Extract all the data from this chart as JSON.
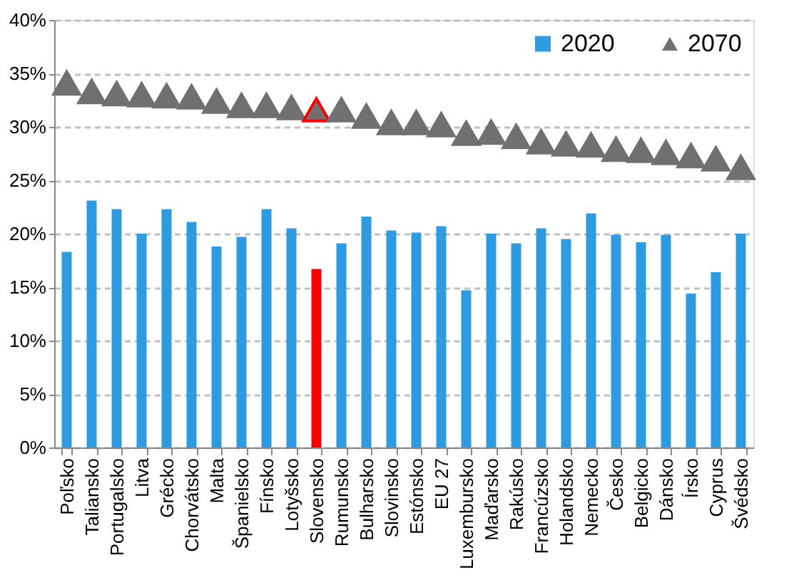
{
  "chart_data": {
    "type": "bar",
    "categories": [
      "Poľsko",
      "Taliansko",
      "Portugalsko",
      "Litva",
      "Grécko",
      "Chorvátsko",
      "Malta",
      "Španielsko",
      "Fínsko",
      "Lotyšsko",
      "Slovensko",
      "Rumunsko",
      "Bulharsko",
      "Slovinsko",
      "Estónsko",
      "EU 27",
      "Luxembursko",
      "Maďarsko",
      "Rakúsko",
      "Francúzsko",
      "Holandsko",
      "Nemecko",
      "Česko",
      "Belgicko",
      "Dánsko",
      "Írsko",
      "Cyprus",
      "Švédsko"
    ],
    "series": [
      {
        "name": "2020",
        "color": "#2e9ae0",
        "colors": [
          "#2e9ae0",
          "#2e9ae0",
          "#2e9ae0",
          "#2e9ae0",
          "#2e9ae0",
          "#2e9ae0",
          "#2e9ae0",
          "#2e9ae0",
          "#2e9ae0",
          "#2e9ae0",
          "#ff0000",
          "#2e9ae0",
          "#2e9ae0",
          "#2e9ae0",
          "#2e9ae0",
          "#2e9ae0",
          "#2e9ae0",
          "#2e9ae0",
          "#2e9ae0",
          "#2e9ae0",
          "#2e9ae0",
          "#2e9ae0",
          "#2e9ae0",
          "#2e9ae0",
          "#2e9ae0",
          "#2e9ae0",
          "#2e9ae0",
          "#2e9ae0"
        ],
        "values": [
          18.3,
          23.1,
          22.3,
          20.0,
          22.3,
          21.1,
          18.8,
          19.7,
          22.3,
          20.5,
          16.7,
          19.1,
          21.6,
          20.3,
          20.1,
          20.7,
          14.7,
          20.0,
          19.1,
          20.5,
          19.5,
          21.9,
          19.9,
          19.2,
          19.9,
          14.4,
          16.4,
          20.0
        ]
      },
      {
        "name": "2070",
        "type": "scatter",
        "marker": "triangle",
        "color": "#707070",
        "colors": [
          "#707070",
          "#707070",
          "#707070",
          "#707070",
          "#707070",
          "#707070",
          "#707070",
          "#707070",
          "#707070",
          "#707070",
          "#ff0000",
          "#707070",
          "#707070",
          "#707070",
          "#707070",
          "#707070",
          "#707070",
          "#707070",
          "#707070",
          "#707070",
          "#707070",
          "#707070",
          "#707070",
          "#707070",
          "#707070",
          "#707070",
          "#707070",
          "#707070"
        ],
        "values": [
          34.1,
          33.3,
          33.1,
          33.0,
          32.9,
          32.8,
          32.4,
          32.0,
          32.0,
          31.8,
          31.6,
          31.6,
          31.0,
          30.4,
          30.4,
          30.2,
          29.4,
          29.5,
          29.1,
          28.6,
          28.4,
          28.3,
          27.9,
          27.8,
          27.6,
          27.3,
          27.0,
          26.2
        ]
      }
    ],
    "ylim": [
      0,
      40
    ],
    "yticks": [
      {
        "value": 0,
        "label": "0%"
      },
      {
        "value": 5,
        "label": "5%"
      },
      {
        "value": 10,
        "label": "10%"
      },
      {
        "value": 15,
        "label": "15%"
      },
      {
        "value": 20,
        "label": "20%"
      },
      {
        "value": 25,
        "label": "25%"
      },
      {
        "value": 30,
        "label": "30%"
      },
      {
        "value": 35,
        "label": "35%"
      },
      {
        "value": 40,
        "label": "40%"
      }
    ],
    "grid": "y",
    "legend": "top right"
  }
}
